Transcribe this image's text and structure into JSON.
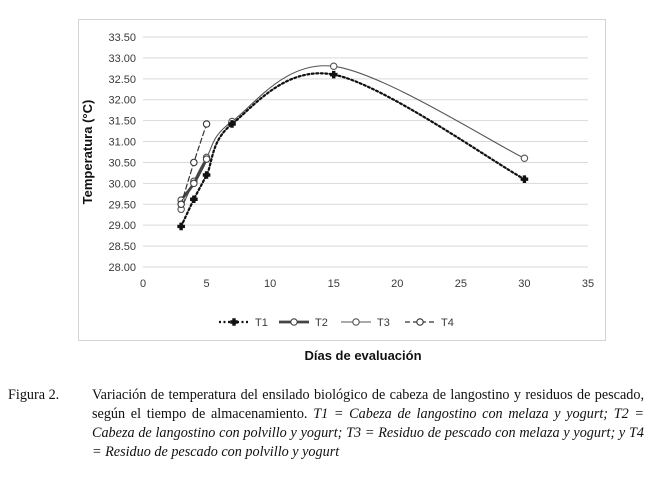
{
  "chart_data": {
    "type": "line",
    "xlabel": "Días de evaluación",
    "ylabel": "Temperatura (°C)",
    "xlim": [
      0,
      35
    ],
    "ylim": [
      28.0,
      33.5
    ],
    "x_ticks": [
      "0",
      "5",
      "10",
      "15",
      "20",
      "25",
      "30",
      "35"
    ],
    "y_ticks": [
      "28.00",
      "28.50",
      "29.00",
      "29.50",
      "30.00",
      "30.50",
      "31.00",
      "31.50",
      "32.00",
      "32.50",
      "33.00",
      "33.50"
    ],
    "grid": "horizontal",
    "legend_position": "bottom",
    "series": [
      {
        "name": "T1",
        "line_style": "dotted",
        "marker": "filled-cross",
        "color": "#111111",
        "points": [
          [
            3,
            28.97
          ],
          [
            4,
            29.62
          ],
          [
            5,
            30.2
          ],
          [
            7,
            31.42
          ],
          [
            15,
            32.6
          ],
          [
            30,
            30.1
          ]
        ]
      },
      {
        "name": "T2",
        "line_style": "thick-solid",
        "marker": "open-circle",
        "color": "#444444",
        "points": [
          [
            3,
            29.6
          ],
          [
            4,
            30.0
          ],
          [
            5,
            30.58
          ]
        ]
      },
      {
        "name": "T3",
        "line_style": "solid",
        "marker": "open-circle",
        "color": "#555555",
        "points": [
          [
            3,
            29.38
          ],
          [
            4,
            30.05
          ],
          [
            5,
            30.62
          ],
          [
            7,
            31.48
          ],
          [
            15,
            32.8
          ],
          [
            30,
            30.6
          ]
        ]
      },
      {
        "name": "T4",
        "line_style": "dashed",
        "marker": "open-circle",
        "color": "#333333",
        "points": [
          [
            3,
            29.5
          ],
          [
            4,
            30.5
          ],
          [
            5,
            31.42
          ]
        ]
      }
    ]
  },
  "caption": {
    "label": "Figura 2.",
    "text_plain": "Variación de temperatura del ensilado biológico de cabeza de langostino y residuos de pescado, según el tiempo de almacenamiento.",
    "text_italic": "T1 = Cabeza de langostino con melaza y yogurt; T2 = Cabeza de langostino con polvillo y yogurt; T3 = Residuo de pescado con melaza y yogurt; y T4 = Residuo de pescado con polvillo y yogurt"
  }
}
